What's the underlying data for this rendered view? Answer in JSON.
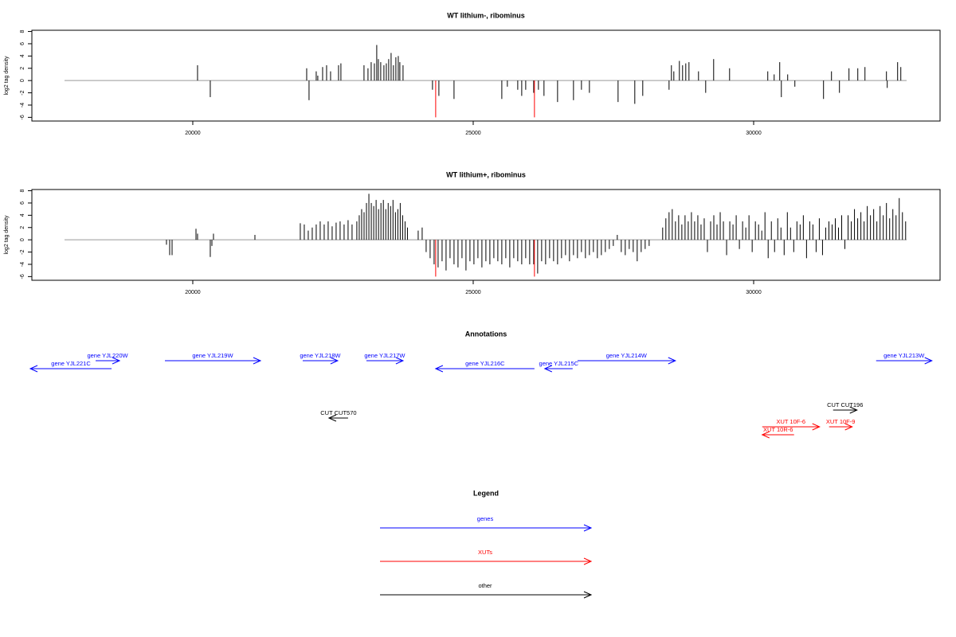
{
  "chart_data": [
    {
      "type": "spike",
      "title": "WT lithium-, ribominus",
      "y_label": "log2 tag density",
      "xlim": [
        17131,
        33324
      ],
      "ylim": [
        -6.6,
        8.2
      ],
      "xticks": [
        20000,
        25000,
        30000
      ],
      "yticks": [
        8,
        6,
        4,
        2,
        0,
        -2,
        -4,
        -6
      ],
      "series": [
        {
          "color": "#000000",
          "x": [
            20085,
            20312,
            22031,
            22073,
            22201,
            22229,
            22315,
            22386,
            22457,
            22599,
            22641,
            23053,
            23124,
            23181,
            23238,
            23280,
            23309,
            23351,
            23408,
            23451,
            23493,
            23536,
            23578,
            23621,
            23664,
            23692,
            23749,
            24274,
            24388,
            24658,
            25510,
            25609,
            25794,
            25865,
            25936,
            26078,
            26163,
            26262,
            26504,
            26788,
            26930,
            27072,
            27583,
            27881,
            28023,
            28492,
            28534,
            28577,
            28676,
            28733,
            28790,
            28847,
            29017,
            29145,
            29287,
            29571,
            30252,
            30366,
            30465,
            30494,
            30607,
            30735,
            31246,
            31388,
            31530,
            31700,
            31857,
            31985,
            32368,
            32382,
            32567,
            32624
          ],
          "values": [
            2.5,
            -2.7,
            2,
            -3.2,
            1.5,
            0.8,
            2.2,
            2.5,
            1.5,
            2.5,
            2.8,
            2.5,
            2,
            3,
            2.8,
            5.8,
            3.5,
            3,
            2.5,
            2.8,
            3.5,
            4.5,
            2.5,
            3.8,
            4,
            3,
            2.5,
            -1.5,
            -2.5,
            -3,
            -3,
            -1,
            -1.5,
            -2.5,
            -1.5,
            -2,
            -1.5,
            -2.5,
            -3.5,
            -3.2,
            -1.5,
            -2,
            -3.5,
            -3.8,
            -2.5,
            -1.5,
            2.5,
            1.5,
            3.2,
            2.5,
            2.8,
            3,
            1.5,
            -2,
            3.5,
            2,
            1.5,
            1,
            3,
            -2.7,
            1,
            -1,
            -3,
            1.5,
            -2,
            2,
            2,
            2.2,
            1.5,
            -1.2,
            3,
            2.2
          ]
        },
        {
          "color": "#ff0000",
          "x": [
            24331,
            26092
          ],
          "values": [
            -6,
            -6
          ]
        }
      ]
    },
    {
      "type": "spike",
      "title": "WT lithium+, ribominus",
      "y_label": "log2 tag density",
      "xlim": [
        17131,
        33324
      ],
      "ylim": [
        -6.6,
        8.2
      ],
      "xticks": [
        20000,
        25000,
        30000
      ],
      "yticks": [
        8,
        6,
        4,
        2,
        0,
        -2,
        -4,
        -6
      ],
      "series": [
        {
          "color": "#000000",
          "x": [
            19531,
            19588,
            19631,
            20057,
            20085,
            20312,
            20341,
            20369,
            21108,
            21917,
            21988,
            22059,
            22130,
            22201,
            22272,
            22343,
            22414,
            22485,
            22556,
            22627,
            22698,
            22769,
            22840,
            22925,
            22968,
            23011,
            23054,
            23097,
            23140,
            23183,
            23226,
            23269,
            23312,
            23355,
            23398,
            23441,
            23484,
            23527,
            23570,
            23613,
            23656,
            23699,
            23742,
            23785,
            23828,
            24019,
            24090,
            24161,
            24232,
            24303,
            24374,
            24445,
            24516,
            24587,
            24658,
            24729,
            24800,
            24871,
            24942,
            25013,
            25084,
            25155,
            25226,
            25297,
            25368,
            25439,
            25510,
            25581,
            25652,
            25723,
            25794,
            25865,
            25936,
            26007,
            26078,
            26149,
            26220,
            26291,
            26362,
            26433,
            26504,
            26575,
            26646,
            26717,
            26788,
            26859,
            26930,
            27001,
            27072,
            27143,
            27214,
            27285,
            27356,
            27427,
            27498,
            27569,
            27640,
            27711,
            27782,
            27853,
            27924,
            27995,
            28066,
            28137,
            28378,
            28435,
            28492,
            28549,
            28606,
            28663,
            28720,
            28777,
            28834,
            28891,
            28948,
            29005,
            29062,
            29119,
            29176,
            29233,
            29290,
            29347,
            29404,
            29461,
            29518,
            29575,
            29632,
            29689,
            29746,
            29803,
            29860,
            29917,
            29974,
            30031,
            30088,
            30145,
            30202,
            30259,
            30316,
            30373,
            30430,
            30487,
            30544,
            30601,
            30658,
            30715,
            30772,
            30829,
            30886,
            30943,
            31000,
            31057,
            31114,
            31171,
            31228,
            31285,
            31342,
            31399,
            31456,
            31513,
            31570,
            31627,
            31684,
            31741,
            31798,
            31855,
            31912,
            31969,
            32026,
            32083,
            32140,
            32197,
            32254,
            32311,
            32368,
            32425,
            32482,
            32539,
            32596,
            32653,
            32710
          ],
          "values": [
            -0.8,
            -2.5,
            -2.5,
            1.8,
            1,
            -2.8,
            -1,
            1,
            0.8,
            2.7,
            2.5,
            1.5,
            2,
            2.5,
            3,
            2.5,
            3,
            2.2,
            2.8,
            3,
            2.5,
            3.2,
            2.5,
            3,
            4,
            5,
            4.5,
            6,
            7.5,
            6,
            5.5,
            6.5,
            5,
            6,
            6.5,
            5,
            6,
            5.5,
            6.5,
            4.5,
            5,
            6,
            4,
            3,
            2,
            1.5,
            2,
            -2,
            -3,
            -4,
            -4.5,
            -3.5,
            -5,
            -3,
            -4,
            -4.5,
            -3,
            -5,
            -3.5,
            -4,
            -3,
            -4.5,
            -3.5,
            -4,
            -3,
            -3.5,
            -4,
            -3,
            -4.5,
            -3,
            -3.5,
            -4,
            -3,
            -4,
            -4,
            -5.5,
            -3.5,
            -4,
            -3,
            -3.5,
            -4,
            -3,
            -2.5,
            -3.5,
            -2.5,
            -3,
            -2,
            -3,
            -2.5,
            -2,
            -3,
            -2.5,
            -2,
            -1.5,
            -1,
            0.8,
            -2,
            -2.5,
            -1.5,
            -2,
            -3.5,
            -2,
            -1.5,
            -1,
            2,
            3.5,
            4.5,
            5,
            3,
            4,
            2.5,
            4,
            3,
            4.5,
            3,
            4,
            2.5,
            3.5,
            -2,
            3,
            4,
            2.5,
            4.5,
            3,
            -2.5,
            3,
            2.5,
            4,
            -1.5,
            3,
            2,
            4,
            -2,
            3,
            2.5,
            1.5,
            4.5,
            -3,
            3,
            -2,
            3.5,
            2,
            -2.5,
            4.5,
            2,
            -2,
            3,
            2.5,
            4,
            -3,
            3,
            2.5,
            -2,
            3.5,
            -2.5,
            2,
            3,
            2.5,
            3.5,
            2,
            4,
            -1.5,
            4,
            3,
            5,
            3.5,
            4.5,
            3,
            5.5,
            4,
            5,
            3,
            5.5,
            4,
            6,
            3.5,
            5,
            4,
            6.8,
            4.5,
            3
          ]
        },
        {
          "color": "#ff0000",
          "x": [
            24331,
            26092
          ],
          "values": [
            -6,
            -6
          ]
        }
      ]
    }
  ],
  "annotations": {
    "title": "Annotations",
    "features": [
      {
        "label": "gene YJL221C",
        "start": 17103,
        "end": 18552,
        "strand": "-",
        "color": "#0000ff"
      },
      {
        "label": "gene YJL220W",
        "start": 18268,
        "end": 18694,
        "strand": "+",
        "color": "#0000ff"
      },
      {
        "label": "gene YJL219W",
        "start": 19503,
        "end": 21207,
        "strand": "+",
        "color": "#0000ff"
      },
      {
        "label": "gene YJL218W",
        "start": 21960,
        "end": 22584,
        "strand": "+",
        "color": "#0000ff"
      },
      {
        "label": "gene YJL217W",
        "start": 23096,
        "end": 23749,
        "strand": "+",
        "color": "#0000ff"
      },
      {
        "label": "gene YJL216C",
        "start": 24331,
        "end": 26092,
        "strand": "-",
        "color": "#0000ff"
      },
      {
        "label": "gene YJL215C",
        "start": 26276,
        "end": 26773,
        "strand": "-",
        "color": "#0000ff"
      },
      {
        "label": "gene YJL214W",
        "start": 26859,
        "end": 28605,
        "strand": "+",
        "color": "#0000ff"
      },
      {
        "label": "gene YJL213W",
        "start": 32184,
        "end": 33178,
        "strand": "+",
        "color": "#0000ff"
      },
      {
        "label": "CUT CUT570",
        "start": 22428,
        "end": 22769,
        "strand": "-",
        "color": "#000000"
      },
      {
        "label": "CUT CUT196",
        "start": 31417,
        "end": 31843,
        "strand": "+",
        "color": "#000000"
      },
      {
        "label": "XUT 10F-6",
        "start": 30153,
        "end": 31175,
        "strand": "+",
        "color": "#ff0000"
      },
      {
        "label": "XUT 10F-9",
        "start": 31345,
        "end": 31757,
        "strand": "+",
        "color": "#ff0000"
      },
      {
        "label": "XUT 10R-6",
        "start": 30153,
        "end": 30721,
        "strand": "-",
        "color": "#ff0000"
      }
    ]
  },
  "legend": {
    "title": "Legend",
    "entries": [
      {
        "name": "genes",
        "color": "#0000ff"
      },
      {
        "name": "XUTs",
        "color": "#ff0000"
      },
      {
        "name": "other",
        "color": "#000000"
      }
    ]
  }
}
